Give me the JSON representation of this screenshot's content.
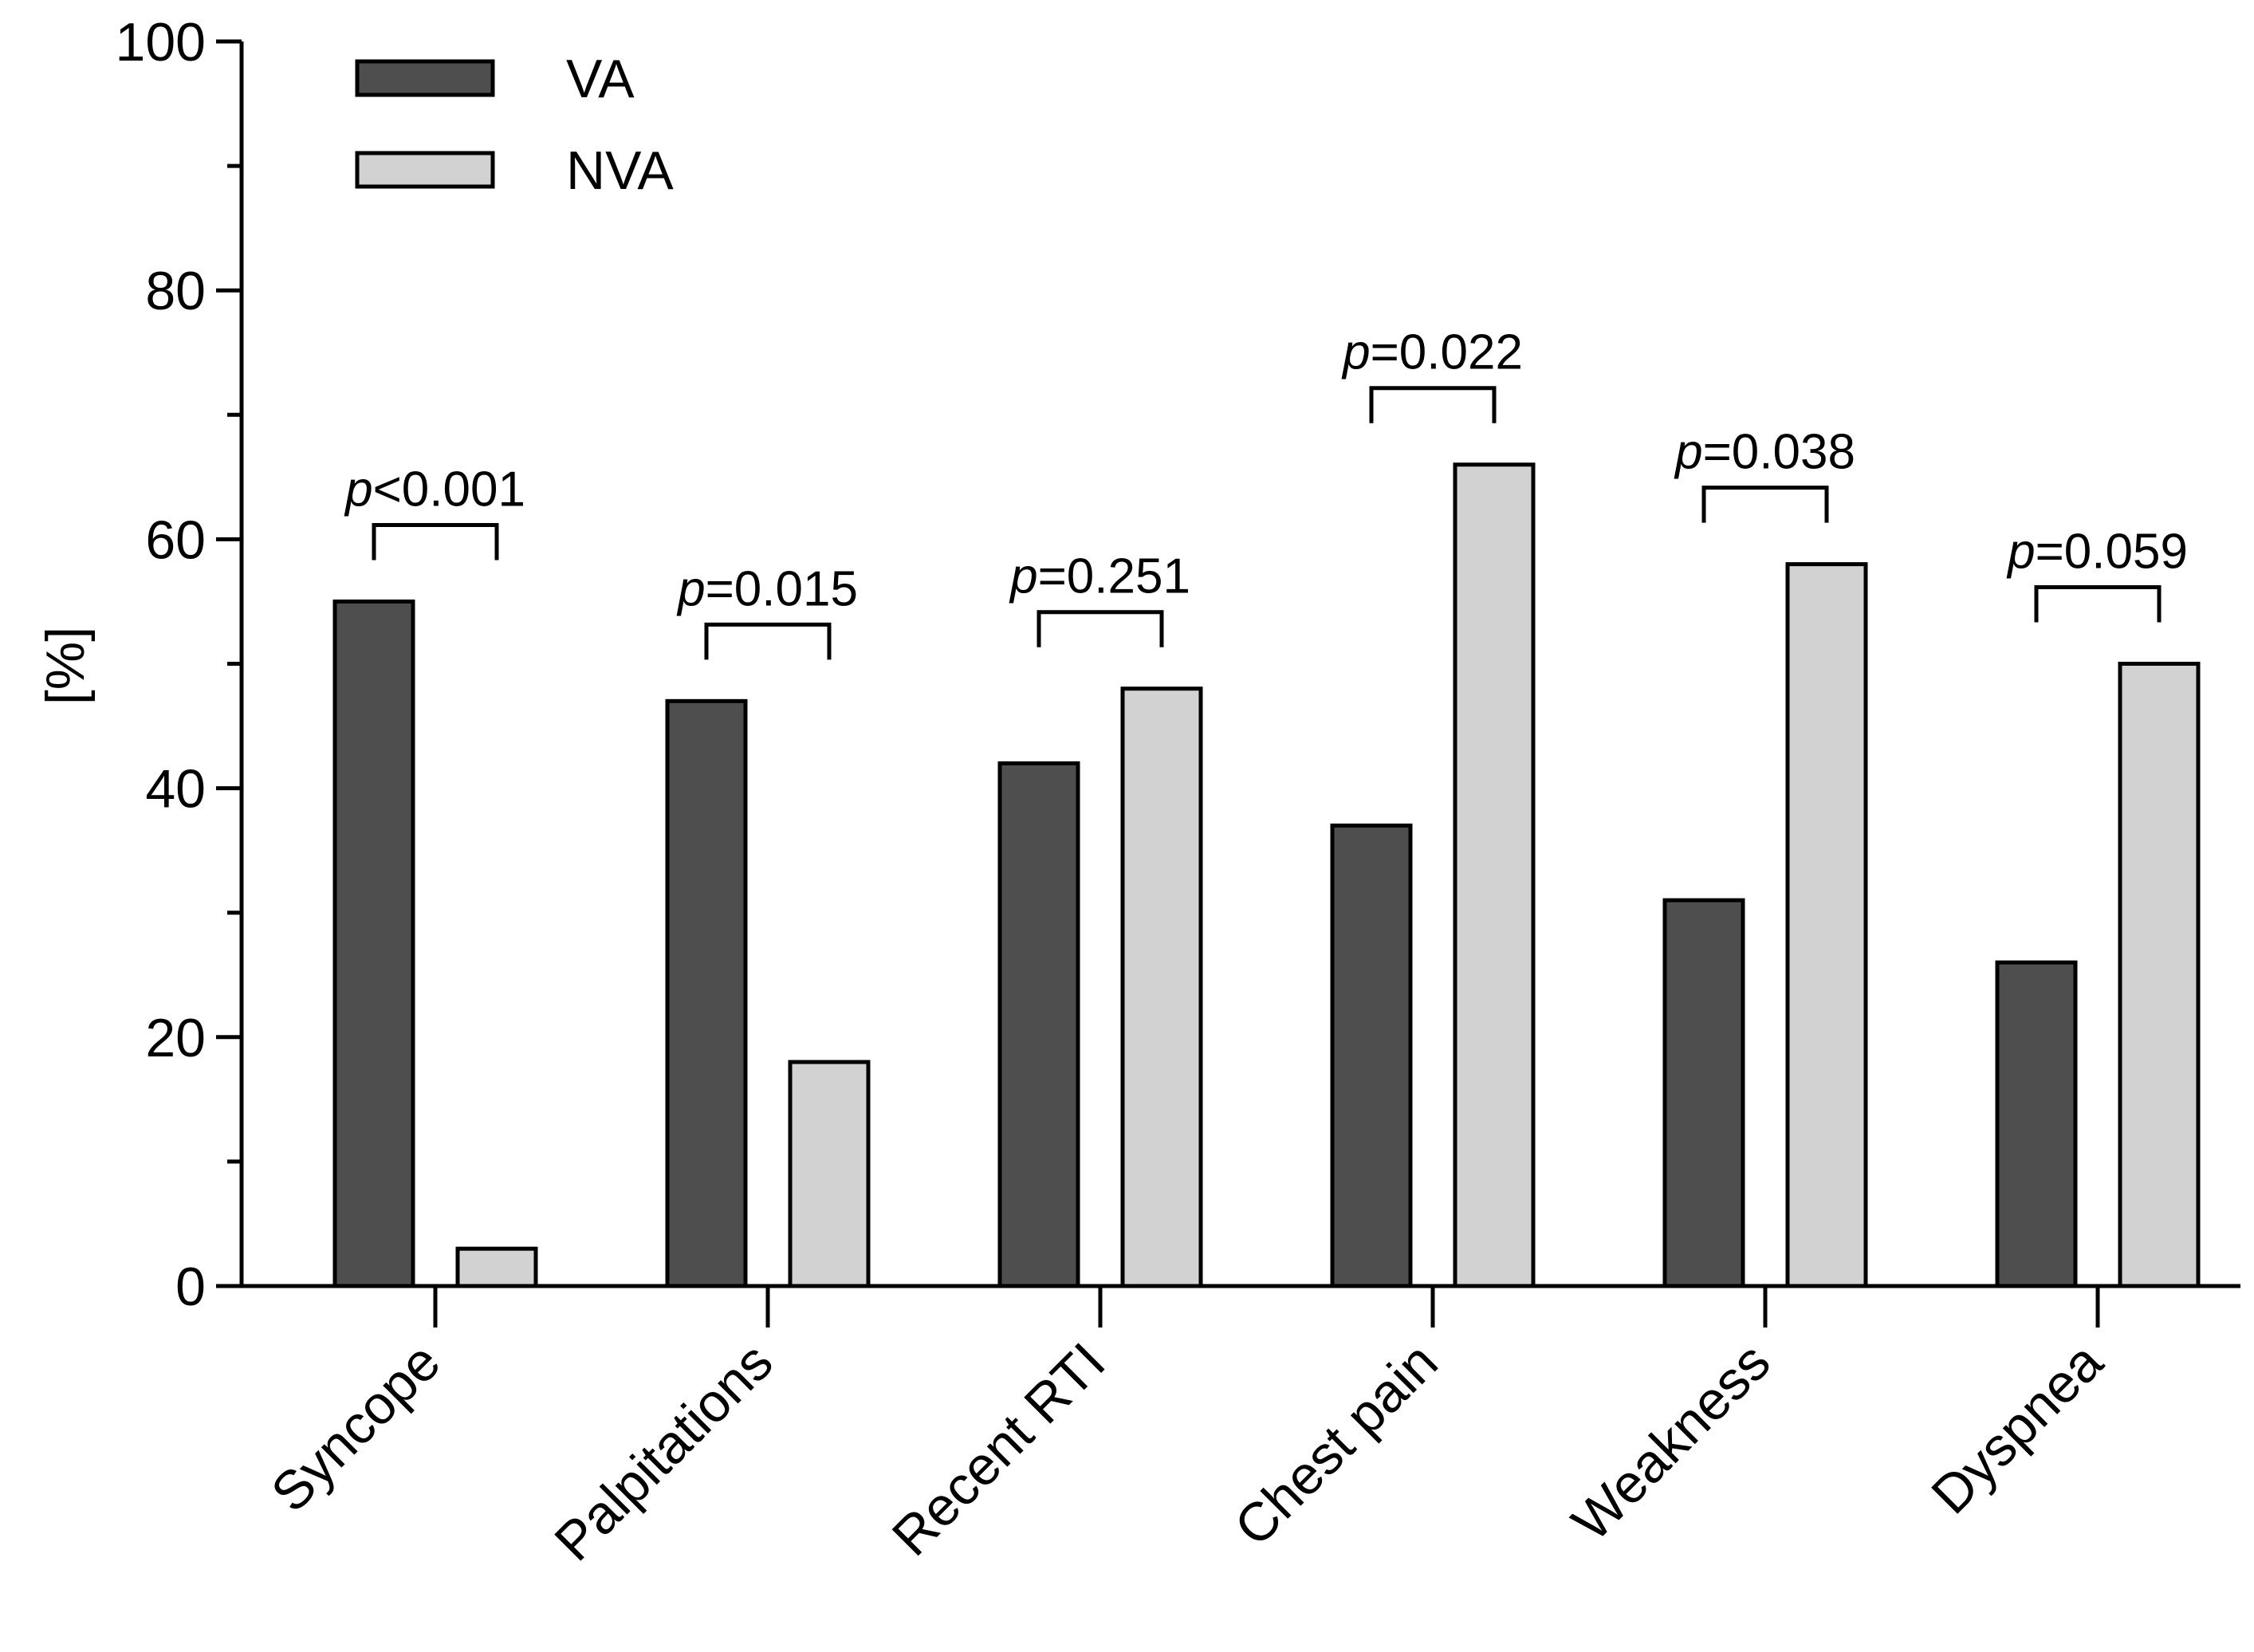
{
  "chart_data": {
    "type": "bar",
    "title": "",
    "xlabel": "",
    "ylabel": "[%]",
    "ylim": [
      0,
      100
    ],
    "yticks": [
      0,
      20,
      40,
      60,
      80,
      100
    ],
    "yminor": [
      10,
      30,
      50,
      70,
      90
    ],
    "categories": [
      "Syncope",
      "Palpitations",
      "Recent RTI",
      "Chest pain",
      "Weakness",
      "Dyspnea"
    ],
    "series": [
      {
        "name": "VA",
        "color": "#4d4e4d",
        "values": [
          55,
          47,
          42,
          37,
          31,
          26
        ]
      },
      {
        "name": "NVA",
        "color": "#d2d2d2",
        "values": [
          3,
          18,
          48,
          66,
          58,
          50
        ]
      }
    ],
    "pvalues": [
      {
        "p": "p",
        "rest": "<0.001"
      },
      {
        "p": "p",
        "rest": "=0.015"
      },
      {
        "p": "p",
        "rest": "=0.251"
      },
      {
        "p": "p",
        "rest": "=0.022"
      },
      {
        "p": "p",
        "rest": "=0.038"
      },
      {
        "p": "p",
        "rest": "=0.059"
      }
    ],
    "legend_position": "top-left"
  }
}
